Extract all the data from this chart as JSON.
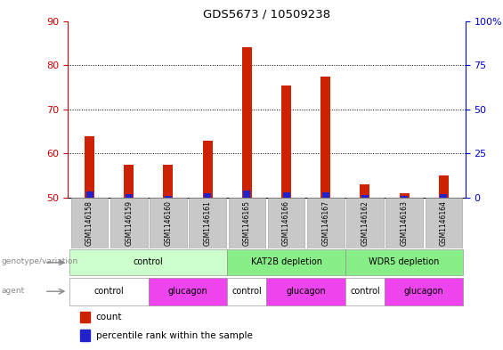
{
  "title": "GDS5673 / 10509238",
  "samples": [
    "GSM1146158",
    "GSM1146159",
    "GSM1146160",
    "GSM1146161",
    "GSM1146165",
    "GSM1146166",
    "GSM1146167",
    "GSM1146162",
    "GSM1146163",
    "GSM1146164"
  ],
  "count_values": [
    64,
    57.5,
    57.5,
    63,
    84,
    75.5,
    77.5,
    53,
    51,
    55
  ],
  "count_base": 50,
  "percentile_values": [
    3.5,
    2,
    1,
    2.5,
    4,
    3,
    3,
    1.5,
    1.2,
    2
  ],
  "left_yaxis": {
    "min": 50,
    "max": 90,
    "ticks": [
      50,
      60,
      70,
      80,
      90
    ],
    "color": "#cc0000"
  },
  "right_yaxis": {
    "min": 0,
    "max": 100,
    "ticks": [
      0,
      25,
      50,
      75,
      100
    ],
    "color": "#0000cc"
  },
  "bar_color_red": "#cc2200",
  "bar_color_blue": "#2222cc",
  "bar_width": 0.25,
  "blue_bar_width": 0.18,
  "genotype_groups": [
    {
      "label": "control",
      "start": 0,
      "end": 3,
      "color": "#ccffcc"
    },
    {
      "label": "KAT2B depletion",
      "start": 4,
      "end": 6,
      "color": "#88ee88"
    },
    {
      "label": "WDR5 depletion",
      "start": 7,
      "end": 9,
      "color": "#88ee88"
    }
  ],
  "agent_groups": [
    {
      "label": "control",
      "start": 0,
      "end": 1,
      "color": "#ffffff"
    },
    {
      "label": "glucagon",
      "start": 2,
      "end": 3,
      "color": "#ee44ee"
    },
    {
      "label": "control",
      "start": 4,
      "end": 4,
      "color": "#ffffff"
    },
    {
      "label": "glucagon",
      "start": 5,
      "end": 6,
      "color": "#ee44ee"
    },
    {
      "label": "control",
      "start": 7,
      "end": 7,
      "color": "#ffffff"
    },
    {
      "label": "glucagon",
      "start": 8,
      "end": 9,
      "color": "#ee44ee"
    }
  ],
  "legend_count_label": "count",
  "legend_percentile_label": "percentile rank within the sample",
  "genotype_label": "genotype/variation",
  "agent_label": "agent",
  "bg_color": "#ffffff",
  "grid_color": "#000000",
  "axis_label_color_left": "#cc0000",
  "axis_label_color_right": "#0000cc",
  "sample_box_color": "#c8c8c8",
  "arrow_color": "#888888"
}
